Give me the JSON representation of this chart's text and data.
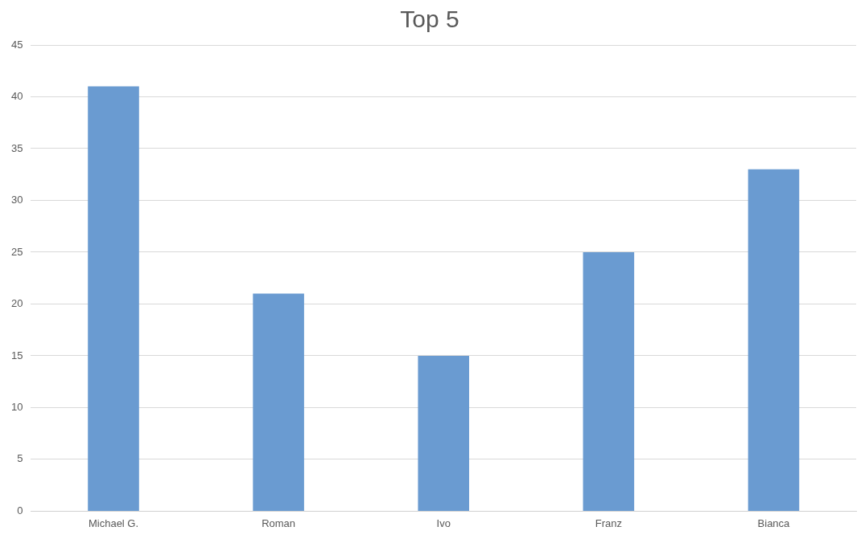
{
  "chart_data": {
    "type": "bar",
    "title": "Top 5",
    "categories": [
      "Michael G.",
      "Roman",
      "Ivo",
      "Franz",
      "Bianca"
    ],
    "values": [
      41,
      21,
      15,
      25,
      33
    ],
    "color": "#6a9bd1",
    "ylim": [
      0,
      45
    ],
    "yticks": [
      0,
      5,
      10,
      15,
      20,
      25,
      30,
      35,
      40,
      45
    ],
    "grid": "y"
  }
}
